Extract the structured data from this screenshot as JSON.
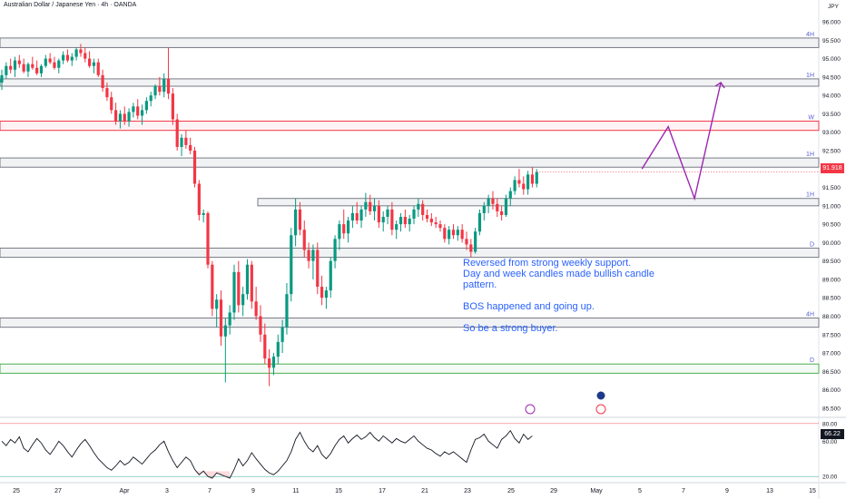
{
  "header": {
    "title": "Australian Dollar / Japanese Yen · 4h · OANDA",
    "currency": "JPY"
  },
  "annotation": {
    "line1": "Reversed from strong weekly support.",
    "line2": "Day and week candles made bullish candle",
    "line3": "pattern.",
    "line4": "BOS happened and going up.",
    "line5": "So be a strong buyer."
  },
  "price_axis": {
    "labels": [
      "96.000",
      "95.500",
      "95.000",
      "94.500",
      "94.000",
      "93.500",
      "93.000",
      "92.500",
      "92.000",
      "91.500",
      "91.000",
      "90.500",
      "90.000",
      "89.500",
      "89.000",
      "88.500",
      "88.000",
      "87.500",
      "87.000",
      "86.500",
      "86.000",
      "85.500"
    ],
    "current_price": "91.918"
  },
  "time_axis": [
    "25",
    "27",
    "Apr",
    "3",
    "7",
    "9",
    "11",
    "15",
    "17",
    "21",
    "23",
    "25",
    "29",
    "May",
    "5",
    "7",
    "9",
    "13",
    "15"
  ],
  "zone_labels": [
    "4H",
    "1H",
    "W",
    "1H",
    "1H",
    "D",
    "4H",
    "D"
  ],
  "rsi": {
    "labels": [
      "80.00",
      "60.00",
      "20.00"
    ],
    "current": "66.22"
  },
  "colors": {
    "up": "#089981",
    "down": "#f23645",
    "projection": "#9c27b0",
    "note": "#2962ff",
    "zone_gray": "#787b86",
    "zone_red": "#f23645",
    "zone_green": "#4caf50"
  },
  "chart_data": {
    "type": "candlestick",
    "title": "Australian Dollar / Japanese Yen · 4h · OANDA",
    "ylim": [
      85.3,
      96.1
    ],
    "candles": [
      {
        "o": 94.35,
        "h": 94.7,
        "l": 94.15,
        "c": 94.55
      },
      {
        "o": 94.55,
        "h": 94.9,
        "l": 94.45,
        "c": 94.8
      },
      {
        "o": 94.8,
        "h": 95.0,
        "l": 94.6,
        "c": 94.7
      },
      {
        "o": 94.7,
        "h": 95.05,
        "l": 94.5,
        "c": 94.95
      },
      {
        "o": 94.95,
        "h": 95.1,
        "l": 94.75,
        "c": 94.85
      },
      {
        "o": 94.85,
        "h": 95.0,
        "l": 94.6,
        "c": 94.65
      },
      {
        "o": 94.65,
        "h": 94.9,
        "l": 94.5,
        "c": 94.85
      },
      {
        "o": 94.85,
        "h": 95.05,
        "l": 94.7,
        "c": 94.75
      },
      {
        "o": 94.75,
        "h": 94.95,
        "l": 94.55,
        "c": 94.6
      },
      {
        "o": 94.6,
        "h": 94.85,
        "l": 94.5,
        "c": 94.8
      },
      {
        "o": 94.8,
        "h": 95.1,
        "l": 94.75,
        "c": 95.0
      },
      {
        "o": 95.0,
        "h": 95.15,
        "l": 94.85,
        "c": 94.9
      },
      {
        "o": 94.9,
        "h": 95.05,
        "l": 94.7,
        "c": 94.75
      },
      {
        "o": 94.75,
        "h": 95.0,
        "l": 94.6,
        "c": 94.95
      },
      {
        "o": 94.95,
        "h": 95.2,
        "l": 94.85,
        "c": 95.1
      },
      {
        "o": 95.1,
        "h": 95.25,
        "l": 94.9,
        "c": 94.95
      },
      {
        "o": 94.95,
        "h": 95.15,
        "l": 94.8,
        "c": 95.05
      },
      {
        "o": 95.05,
        "h": 95.3,
        "l": 94.95,
        "c": 95.25
      },
      {
        "o": 95.25,
        "h": 95.4,
        "l": 95.05,
        "c": 95.15
      },
      {
        "o": 95.15,
        "h": 95.3,
        "l": 94.9,
        "c": 95.0
      },
      {
        "o": 95.0,
        "h": 95.2,
        "l": 94.75,
        "c": 94.8
      },
      {
        "o": 94.8,
        "h": 95.0,
        "l": 94.6,
        "c": 94.9
      },
      {
        "o": 94.9,
        "h": 95.0,
        "l": 94.5,
        "c": 94.55
      },
      {
        "o": 94.55,
        "h": 94.7,
        "l": 94.1,
        "c": 94.2
      },
      {
        "o": 94.2,
        "h": 94.35,
        "l": 93.85,
        "c": 93.95
      },
      {
        "o": 93.95,
        "h": 94.1,
        "l": 93.5,
        "c": 93.6
      },
      {
        "o": 93.6,
        "h": 93.8,
        "l": 93.2,
        "c": 93.3
      },
      {
        "o": 93.3,
        "h": 93.6,
        "l": 93.1,
        "c": 93.5
      },
      {
        "o": 93.5,
        "h": 93.7,
        "l": 93.2,
        "c": 93.3
      },
      {
        "o": 93.3,
        "h": 93.65,
        "l": 93.15,
        "c": 93.55
      },
      {
        "o": 93.55,
        "h": 93.8,
        "l": 93.4,
        "c": 93.7
      },
      {
        "o": 93.7,
        "h": 93.9,
        "l": 93.35,
        "c": 93.45
      },
      {
        "o": 93.45,
        "h": 93.75,
        "l": 93.2,
        "c": 93.6
      },
      {
        "o": 93.6,
        "h": 93.95,
        "l": 93.5,
        "c": 93.85
      },
      {
        "o": 93.85,
        "h": 94.1,
        "l": 93.7,
        "c": 94.0
      },
      {
        "o": 94.0,
        "h": 94.3,
        "l": 93.9,
        "c": 94.25
      },
      {
        "o": 94.25,
        "h": 94.5,
        "l": 94.0,
        "c": 94.1
      },
      {
        "o": 94.1,
        "h": 94.6,
        "l": 93.95,
        "c": 94.45
      },
      {
        "o": 94.45,
        "h": 95.3,
        "l": 93.9,
        "c": 94.05
      },
      {
        "o": 94.05,
        "h": 94.2,
        "l": 93.2,
        "c": 93.35
      },
      {
        "o": 93.35,
        "h": 93.5,
        "l": 92.5,
        "c": 92.6
      },
      {
        "o": 92.6,
        "h": 92.95,
        "l": 92.35,
        "c": 92.85
      },
      {
        "o": 92.85,
        "h": 93.05,
        "l": 92.55,
        "c": 92.65
      },
      {
        "o": 92.65,
        "h": 92.85,
        "l": 92.4,
        "c": 92.5
      },
      {
        "o": 92.5,
        "h": 92.6,
        "l": 91.5,
        "c": 91.6
      },
      {
        "o": 91.6,
        "h": 91.7,
        "l": 90.6,
        "c": 90.75
      },
      {
        "o": 90.75,
        "h": 90.9,
        "l": 90.55,
        "c": 90.8
      },
      {
        "o": 90.8,
        "h": 90.85,
        "l": 89.3,
        "c": 89.4
      },
      {
        "o": 89.4,
        "h": 89.5,
        "l": 88.0,
        "c": 88.2
      },
      {
        "o": 88.2,
        "h": 88.6,
        "l": 87.7,
        "c": 88.45
      },
      {
        "o": 88.45,
        "h": 88.7,
        "l": 87.2,
        "c": 87.45
      },
      {
        "o": 87.45,
        "h": 87.95,
        "l": 86.2,
        "c": 87.75
      },
      {
        "o": 87.75,
        "h": 88.3,
        "l": 87.5,
        "c": 88.1
      },
      {
        "o": 88.1,
        "h": 89.4,
        "l": 87.9,
        "c": 89.2
      },
      {
        "o": 89.2,
        "h": 89.5,
        "l": 88.1,
        "c": 88.3
      },
      {
        "o": 88.3,
        "h": 88.8,
        "l": 88.0,
        "c": 88.6
      },
      {
        "o": 88.6,
        "h": 89.55,
        "l": 88.45,
        "c": 89.4
      },
      {
        "o": 89.4,
        "h": 89.5,
        "l": 88.2,
        "c": 88.4
      },
      {
        "o": 88.4,
        "h": 88.8,
        "l": 87.9,
        "c": 88.0
      },
      {
        "o": 88.0,
        "h": 88.3,
        "l": 87.3,
        "c": 87.5
      },
      {
        "o": 87.5,
        "h": 87.8,
        "l": 86.7,
        "c": 86.85
      },
      {
        "o": 86.85,
        "h": 87.1,
        "l": 86.1,
        "c": 86.6
      },
      {
        "o": 86.6,
        "h": 87.0,
        "l": 86.4,
        "c": 86.9
      },
      {
        "o": 86.9,
        "h": 87.5,
        "l": 86.7,
        "c": 87.3
      },
      {
        "o": 87.3,
        "h": 87.9,
        "l": 87.0,
        "c": 87.7
      },
      {
        "o": 87.7,
        "h": 88.9,
        "l": 87.5,
        "c": 88.6
      },
      {
        "o": 88.6,
        "h": 90.4,
        "l": 88.4,
        "c": 90.2
      },
      {
        "o": 90.2,
        "h": 91.2,
        "l": 89.9,
        "c": 90.9
      },
      {
        "o": 90.9,
        "h": 91.1,
        "l": 90.2,
        "c": 90.35
      },
      {
        "o": 90.35,
        "h": 90.6,
        "l": 89.6,
        "c": 89.8
      },
      {
        "o": 89.8,
        "h": 90.0,
        "l": 89.3,
        "c": 89.5
      },
      {
        "o": 89.5,
        "h": 89.95,
        "l": 89.0,
        "c": 89.8
      },
      {
        "o": 89.8,
        "h": 90.0,
        "l": 88.6,
        "c": 88.8
      },
      {
        "o": 88.8,
        "h": 89.1,
        "l": 88.3,
        "c": 88.5
      },
      {
        "o": 88.5,
        "h": 88.8,
        "l": 88.2,
        "c": 88.7
      },
      {
        "o": 88.7,
        "h": 89.6,
        "l": 88.5,
        "c": 89.5
      },
      {
        "o": 89.5,
        "h": 90.2,
        "l": 89.3,
        "c": 90.1
      },
      {
        "o": 90.1,
        "h": 90.6,
        "l": 89.8,
        "c": 90.5
      },
      {
        "o": 90.5,
        "h": 90.9,
        "l": 90.1,
        "c": 90.25
      },
      {
        "o": 90.25,
        "h": 90.7,
        "l": 90.0,
        "c": 90.6
      },
      {
        "o": 90.6,
        "h": 91.0,
        "l": 90.4,
        "c": 90.8
      },
      {
        "o": 90.8,
        "h": 91.1,
        "l": 90.5,
        "c": 90.6
      },
      {
        "o": 90.6,
        "h": 91.0,
        "l": 90.4,
        "c": 90.9
      },
      {
        "o": 90.9,
        "h": 91.35,
        "l": 90.7,
        "c": 91.1
      },
      {
        "o": 91.1,
        "h": 91.3,
        "l": 90.75,
        "c": 90.85
      },
      {
        "o": 90.85,
        "h": 91.2,
        "l": 90.6,
        "c": 91.0
      },
      {
        "o": 91.0,
        "h": 91.15,
        "l": 90.4,
        "c": 90.55
      },
      {
        "o": 90.55,
        "h": 90.85,
        "l": 90.3,
        "c": 90.7
      },
      {
        "o": 90.7,
        "h": 91.0,
        "l": 90.5,
        "c": 90.9
      },
      {
        "o": 90.9,
        "h": 91.1,
        "l": 90.2,
        "c": 90.35
      },
      {
        "o": 90.35,
        "h": 90.6,
        "l": 90.1,
        "c": 90.5
      },
      {
        "o": 90.5,
        "h": 90.8,
        "l": 90.3,
        "c": 90.7
      },
      {
        "o": 90.7,
        "h": 90.9,
        "l": 90.4,
        "c": 90.5
      },
      {
        "o": 90.5,
        "h": 90.75,
        "l": 90.3,
        "c": 90.65
      },
      {
        "o": 90.65,
        "h": 91.0,
        "l": 90.5,
        "c": 90.9
      },
      {
        "o": 90.9,
        "h": 91.2,
        "l": 90.7,
        "c": 91.05
      },
      {
        "o": 91.05,
        "h": 91.15,
        "l": 90.6,
        "c": 90.75
      },
      {
        "o": 90.75,
        "h": 90.9,
        "l": 90.55,
        "c": 90.65
      },
      {
        "o": 90.65,
        "h": 90.8,
        "l": 90.45,
        "c": 90.55
      },
      {
        "o": 90.55,
        "h": 90.7,
        "l": 90.4,
        "c": 90.5
      },
      {
        "o": 90.5,
        "h": 90.6,
        "l": 90.3,
        "c": 90.4
      },
      {
        "o": 90.4,
        "h": 90.5,
        "l": 90.0,
        "c": 90.1
      },
      {
        "o": 90.1,
        "h": 90.45,
        "l": 89.95,
        "c": 90.35
      },
      {
        "o": 90.35,
        "h": 90.5,
        "l": 90.1,
        "c": 90.2
      },
      {
        "o": 90.2,
        "h": 90.45,
        "l": 90.05,
        "c": 90.35
      },
      {
        "o": 90.35,
        "h": 90.5,
        "l": 90.0,
        "c": 90.1
      },
      {
        "o": 90.1,
        "h": 90.3,
        "l": 89.8,
        "c": 89.95
      },
      {
        "o": 89.95,
        "h": 90.1,
        "l": 89.6,
        "c": 89.75
      },
      {
        "o": 89.75,
        "h": 90.4,
        "l": 89.7,
        "c": 90.3
      },
      {
        "o": 90.3,
        "h": 90.9,
        "l": 90.2,
        "c": 90.8
      },
      {
        "o": 90.8,
        "h": 91.1,
        "l": 90.6,
        "c": 91.0
      },
      {
        "o": 91.0,
        "h": 91.3,
        "l": 90.8,
        "c": 91.2
      },
      {
        "o": 91.2,
        "h": 91.4,
        "l": 90.9,
        "c": 91.05
      },
      {
        "o": 91.05,
        "h": 91.2,
        "l": 90.7,
        "c": 90.85
      },
      {
        "o": 90.85,
        "h": 91.0,
        "l": 90.6,
        "c": 90.75
      },
      {
        "o": 90.75,
        "h": 91.3,
        "l": 90.7,
        "c": 91.2
      },
      {
        "o": 91.2,
        "h": 91.5,
        "l": 91.0,
        "c": 91.4
      },
      {
        "o": 91.4,
        "h": 91.8,
        "l": 91.3,
        "c": 91.7
      },
      {
        "o": 91.7,
        "h": 92.0,
        "l": 91.5,
        "c": 91.6
      },
      {
        "o": 91.6,
        "h": 91.8,
        "l": 91.3,
        "c": 91.45
      },
      {
        "o": 91.45,
        "h": 91.95,
        "l": 91.3,
        "c": 91.85
      },
      {
        "o": 91.85,
        "h": 92.05,
        "l": 91.5,
        "c": 91.6
      },
      {
        "o": 91.6,
        "h": 92.0,
        "l": 91.5,
        "c": 91.918
      }
    ],
    "zones": [
      {
        "top": 95.56,
        "bottom": 95.3,
        "color": "gray",
        "label": "4H"
      },
      {
        "top": 94.45,
        "bottom": 94.25,
        "color": "gray",
        "label": "1H"
      },
      {
        "top": 93.3,
        "bottom": 93.05,
        "color": "red",
        "label": "W"
      },
      {
        "top": 92.3,
        "bottom": 92.05,
        "color": "gray",
        "label": "1H"
      },
      {
        "top": 91.2,
        "bottom": 91.0,
        "color": "gray",
        "label": "1H"
      },
      {
        "top": 89.85,
        "bottom": 89.6,
        "color": "gray",
        "label": "D"
      },
      {
        "top": 87.95,
        "bottom": 87.7,
        "color": "gray",
        "label": "4H"
      },
      {
        "top": 86.7,
        "bottom": 86.45,
        "color": "green",
        "label": "D"
      }
    ],
    "projection": [
      [
        92.0,
        146
      ],
      [
        93.15,
        152
      ],
      [
        91.2,
        158
      ],
      [
        94.35,
        164
      ]
    ],
    "rsi_values": [
      60,
      55,
      62,
      58,
      65,
      52,
      48,
      56,
      63,
      58,
      50,
      45,
      52,
      60,
      55,
      48,
      42,
      50,
      57,
      62,
      55,
      47,
      40,
      35,
      30,
      27,
      32,
      38,
      33,
      36,
      42,
      38,
      34,
      40,
      46,
      50,
      56,
      60,
      48,
      38,
      30,
      36,
      42,
      38,
      28,
      22,
      26,
      20,
      18,
      24,
      22,
      20,
      18,
      28,
      40,
      32,
      38,
      47,
      40,
      34,
      28,
      24,
      22,
      26,
      32,
      38,
      48,
      62,
      70,
      60,
      52,
      48,
      55,
      45,
      40,
      46,
      55,
      62,
      66,
      58,
      63,
      67,
      62,
      65,
      70,
      64,
      60,
      66,
      62,
      58,
      63,
      60,
      58,
      62,
      66,
      60,
      56,
      52,
      50,
      46,
      43,
      48,
      45,
      48,
      44,
      40,
      36,
      50,
      62,
      64,
      68,
      60,
      56,
      52,
      62,
      66,
      72,
      63,
      58,
      68,
      62,
      66
    ],
    "rsi_ylim": [
      15,
      85
    ],
    "rsi_levels": [
      80,
      20
    ]
  }
}
